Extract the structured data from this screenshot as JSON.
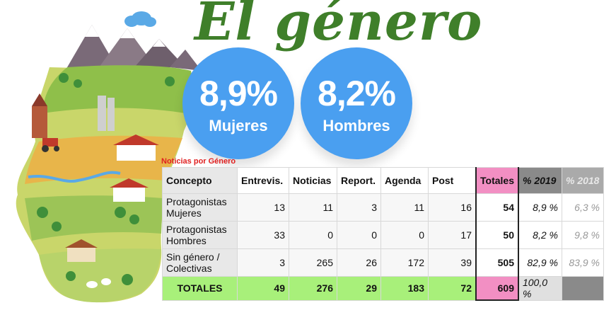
{
  "title": "El género",
  "subtitle": "Noticias por Género",
  "circles": {
    "mujeres": {
      "pct": "8,9%",
      "label": "Mujeres",
      "color": "#4a9ff0"
    },
    "hombres": {
      "pct": "8,2%",
      "label": "Hombres",
      "color": "#4a9ff0"
    }
  },
  "table": {
    "headers": [
      "Concepto",
      "Entrevis.",
      "Noticias",
      "Report.",
      "Agenda",
      "Post",
      "Totales",
      "% 2019",
      "% 2018"
    ],
    "rows": [
      {
        "concept": "Protagonistas Mujeres",
        "values": [
          "13",
          "11",
          "3",
          "11",
          "16"
        ],
        "total": "54",
        "p2019": "8,9 %",
        "p2018": "6,3 %"
      },
      {
        "concept": "Protagonistas Hombres",
        "values": [
          "33",
          "0",
          "0",
          "0",
          "17"
        ],
        "total": "50",
        "p2019": "8,2 %",
        "p2018": "9,8 %"
      },
      {
        "concept": "Sin género / Colectivas",
        "values": [
          "3",
          "265",
          "26",
          "172",
          "39"
        ],
        "total": "505",
        "p2019": "82,9 %",
        "p2018": "83,9 %"
      }
    ],
    "totals": {
      "label": "TOTALES",
      "values": [
        "49",
        "276",
        "29",
        "183",
        "72"
      ],
      "total": "609",
      "p2019": "100,0 %",
      "p2018": ""
    }
  },
  "colors": {
    "title": "#3f7f2a",
    "totals_row": "#a8f07a",
    "totales_col": "#f28fc3",
    "subtitle": "#e02020"
  },
  "illustration": "aragon-region-map-illustration"
}
